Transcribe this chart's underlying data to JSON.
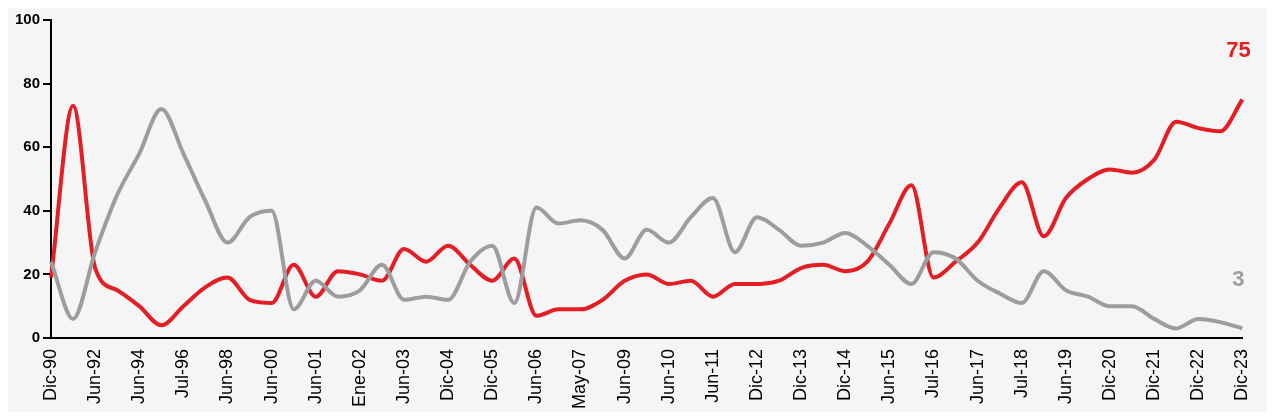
{
  "chart_data": {
    "type": "line",
    "categories": [
      "Dic-90",
      null,
      "Jun-92",
      null,
      "Jun-94",
      null,
      "Jul-96",
      null,
      "Jun-98",
      null,
      "Jun-00",
      null,
      "Jun-01",
      null,
      "Ene-02",
      null,
      "Jun-03",
      null,
      "Dic-04",
      null,
      "Dic-05",
      null,
      "Jun-06",
      null,
      "May-07",
      null,
      "Jun-09",
      null,
      "Jun-10",
      null,
      "Jun-11",
      null,
      "Dic-12",
      null,
      "Dic-13",
      null,
      "Dic-14",
      null,
      "Jun-15",
      null,
      "Jul-16",
      null,
      "Jun-17",
      null,
      "Jul-18",
      null,
      "Jun-19",
      null,
      "Dic-20",
      null,
      "Dic-21",
      null,
      "Dic-22",
      null,
      "Dic-23"
    ],
    "series": [
      {
        "color": "#9d9d9f",
        "values": [
          24,
          6,
          27,
          45,
          58,
          72,
          58,
          43,
          30,
          38,
          40,
          9,
          18,
          13,
          15,
          23,
          12,
          13,
          12,
          24,
          29,
          11,
          41,
          36,
          37,
          34,
          25,
          34,
          30,
          38,
          44,
          27,
          38,
          34,
          29,
          30,
          33,
          29,
          23,
          17,
          27,
          25,
          18,
          14,
          11,
          21,
          15,
          13,
          10,
          10,
          6,
          3,
          6,
          5,
          3
        ],
        "value_labels": [
          null,
          null,
          null,
          null,
          null,
          null,
          null,
          null,
          null,
          null,
          null,
          null,
          null,
          null,
          null,
          null,
          null,
          null,
          null,
          null,
          null,
          null,
          null,
          null,
          null,
          null,
          null,
          null,
          null,
          null,
          null,
          null,
          null,
          null,
          null,
          null,
          null,
          null,
          null,
          null,
          null,
          null,
          null,
          null,
          null,
          null,
          null,
          null,
          null,
          null,
          null,
          null,
          null,
          null,
          "3"
        ]
      },
      {
        "color": "#e31e24",
        "values": [
          19,
          73,
          22,
          15,
          10,
          4,
          10,
          16,
          19,
          12,
          11,
          23,
          13,
          21,
          20,
          18,
          28,
          24,
          29,
          23,
          18,
          25,
          7,
          9,
          9,
          12,
          18,
          20,
          17,
          18,
          13,
          17,
          17,
          18,
          22,
          23,
          21,
          24,
          36,
          48,
          19,
          24,
          30,
          41,
          49,
          32,
          44,
          50,
          53,
          52,
          56,
          68,
          66,
          65,
          75
        ],
        "value_labels": [
          null,
          null,
          null,
          null,
          null,
          null,
          null,
          null,
          null,
          null,
          null,
          null,
          null,
          null,
          null,
          null,
          null,
          null,
          null,
          null,
          null,
          null,
          null,
          null,
          null,
          null,
          null,
          null,
          null,
          null,
          null,
          null,
          null,
          null,
          null,
          null,
          null,
          null,
          null,
          null,
          null,
          null,
          null,
          null,
          null,
          null,
          null,
          null,
          null,
          null,
          null,
          null,
          null,
          null,
          "75"
        ]
      }
    ],
    "ylim": [
      0,
      100
    ],
    "yticks": [
      0,
      20,
      40,
      60,
      80,
      100
    ],
    "grid": false,
    "legend": false
  }
}
